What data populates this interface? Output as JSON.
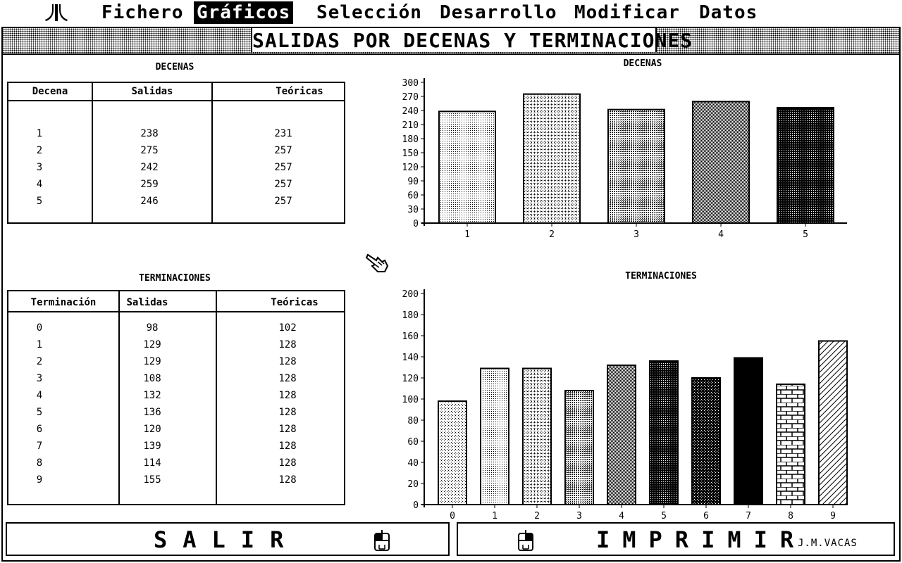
{
  "menu": {
    "items": [
      {
        "label": "Fichero"
      },
      {
        "label": "Gráficos"
      },
      {
        "label": "Selección"
      },
      {
        "label": "Desarrollo"
      },
      {
        "label": "Modificar"
      },
      {
        "label": "Datos"
      }
    ],
    "active_index": 1
  },
  "window": {
    "title": "SALIDAS POR DECENAS Y TERMINACIONES"
  },
  "decenas_table": {
    "heading": "DECENAS",
    "columns": [
      "Decena",
      "Salidas",
      "Teóricas"
    ],
    "rows": [
      [
        "1",
        "238",
        "231"
      ],
      [
        "2",
        "275",
        "257"
      ],
      [
        "3",
        "242",
        "257"
      ],
      [
        "4",
        "259",
        "257"
      ],
      [
        "5",
        "246",
        "257"
      ]
    ]
  },
  "terminaciones_table": {
    "heading": "TERMINACIONES",
    "columns": [
      "Terminación",
      "Salidas",
      "Teóricas"
    ],
    "rows": [
      [
        "0",
        "98",
        "102"
      ],
      [
        "1",
        "129",
        "128"
      ],
      [
        "2",
        "129",
        "128"
      ],
      [
        "3",
        "108",
        "128"
      ],
      [
        "4",
        "132",
        "128"
      ],
      [
        "5",
        "136",
        "128"
      ],
      [
        "6",
        "120",
        "128"
      ],
      [
        "7",
        "139",
        "128"
      ],
      [
        "8",
        "114",
        "128"
      ],
      [
        "9",
        "155",
        "128"
      ]
    ]
  },
  "chart_data": [
    {
      "type": "bar",
      "title": "DECENAS",
      "categories": [
        "1",
        "2",
        "3",
        "4",
        "5"
      ],
      "values": [
        238,
        275,
        242,
        259,
        246
      ],
      "ylim": [
        0,
        300
      ],
      "yticks": [
        0,
        30,
        60,
        90,
        120,
        150,
        180,
        210,
        240,
        270,
        300
      ],
      "grid": false
    },
    {
      "type": "bar",
      "title": "TERMINACIONES",
      "categories": [
        "0",
        "1",
        "2",
        "3",
        "4",
        "5",
        "6",
        "7",
        "8",
        "9"
      ],
      "values": [
        98,
        129,
        129,
        108,
        132,
        136,
        120,
        139,
        114,
        155
      ],
      "ylim": [
        0,
        200
      ],
      "yticks": [
        0,
        20,
        40,
        60,
        80,
        100,
        120,
        140,
        160,
        180,
        200
      ],
      "grid": false
    }
  ],
  "buttons": {
    "salir": "SALIR",
    "imprimir": "IMPRIMIR"
  },
  "author": "J.M.VACAS",
  "icons": {
    "logo": "atari-fuji-icon",
    "pointer": "hand-pointer-icon",
    "mouse": "mouse-icon"
  }
}
